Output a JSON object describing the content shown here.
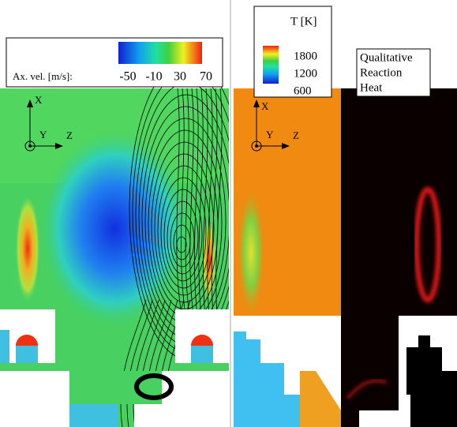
{
  "velocity_legend": {
    "label": "Ax. vel. [m/s]:",
    "ticks": [
      -50,
      -10,
      30,
      70
    ]
  },
  "temperature_legend": {
    "label": "T [K]",
    "ticks": [
      1800,
      1200,
      600
    ]
  },
  "reaction_heat_label": [
    "Qualitative",
    "Reaction",
    "Heat"
  ],
  "axes": {
    "x": "X",
    "y": "Y",
    "z": "Z"
  }
}
